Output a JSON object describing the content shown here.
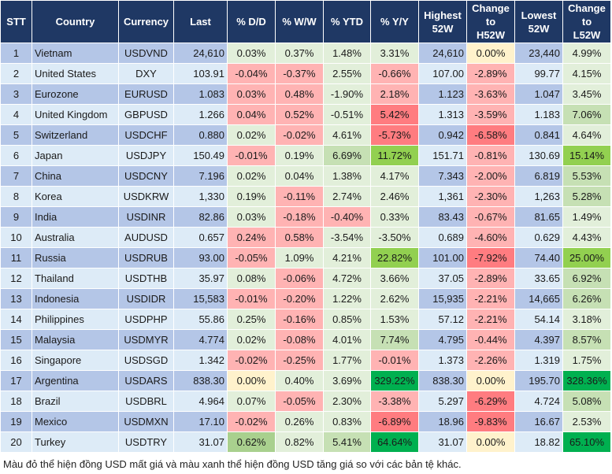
{
  "headers": [
    "STT",
    "Country",
    "Currency",
    "Last",
    "% D/D",
    "% W/W",
    "% YTD",
    "% Y/Y",
    "Highest\n52W",
    "Change\nto\nH52W",
    "Lowest\n52W",
    "Change\nto\nL52W"
  ],
  "colors": {
    "header": "#1f3864",
    "row_odd": "#b4c6e7",
    "row_even": "#ddebf7",
    "g": "#e2efda",
    "G": "#c6e0b4",
    "A": "#a9d08e",
    "GG": "#92d050",
    "GGG": "#00b050",
    "r": "#ffb3b3",
    "R": "#ff7c80",
    "y": "#fff2cc"
  },
  "rows": [
    {
      "cells": [
        "1",
        "Vietnam",
        "USDVND",
        "24,610",
        "0.03%",
        "0.37%",
        "1.48%",
        "3.31%",
        "24,610",
        "0.00%",
        "23,440",
        "4.99%"
      ],
      "styles": [
        "g",
        "g",
        "g",
        "g",
        "b",
        "y",
        "b",
        "g"
      ]
    },
    {
      "cells": [
        "2",
        "United States",
        "DXY",
        "103.91",
        "-0.04%",
        "-0.37%",
        "2.55%",
        "-0.66%",
        "107.00",
        "-2.89%",
        "99.77",
        "4.15%"
      ],
      "styles": [
        "r",
        "r",
        "g",
        "r",
        "b",
        "r",
        "b",
        "g"
      ]
    },
    {
      "cells": [
        "3",
        "Eurozone",
        "EURUSD",
        "1.083",
        "0.03%",
        "0.48%",
        "-1.90%",
        "2.18%",
        "1.123",
        "-3.63%",
        "1.047",
        "3.45%"
      ],
      "styles": [
        "r",
        "r",
        "g",
        "r",
        "b",
        "r",
        "b",
        "g"
      ]
    },
    {
      "cells": [
        "4",
        "United Kingdom",
        "GBPUSD",
        "1.266",
        "0.04%",
        "0.52%",
        "-0.51%",
        "5.42%",
        "1.313",
        "-3.59%",
        "1.183",
        "7.06%"
      ],
      "styles": [
        "r",
        "r",
        "g",
        "R",
        "b",
        "r",
        "b",
        "G"
      ]
    },
    {
      "cells": [
        "5",
        "Switzerland",
        "USDCHF",
        "0.880",
        "0.02%",
        "-0.02%",
        "4.61%",
        "-5.73%",
        "0.942",
        "-6.58%",
        "0.841",
        "4.64%"
      ],
      "styles": [
        "g",
        "r",
        "g",
        "R",
        "b",
        "R",
        "b",
        "g"
      ]
    },
    {
      "cells": [
        "6",
        "Japan",
        "USDJPY",
        "150.49",
        "-0.01%",
        "0.19%",
        "6.69%",
        "11.72%",
        "151.71",
        "-0.81%",
        "130.69",
        "15.14%"
      ],
      "styles": [
        "r",
        "g",
        "G",
        "GG",
        "b",
        "r",
        "b",
        "GG"
      ]
    },
    {
      "cells": [
        "7",
        "China",
        "USDCNY",
        "7.196",
        "0.02%",
        "0.04%",
        "1.38%",
        "4.17%",
        "7.343",
        "-2.00%",
        "6.819",
        "5.53%"
      ],
      "styles": [
        "g",
        "g",
        "g",
        "g",
        "b",
        "r",
        "b",
        "G"
      ]
    },
    {
      "cells": [
        "8",
        "Korea",
        "USDKRW",
        "1,330",
        "0.19%",
        "-0.11%",
        "2.74%",
        "2.46%",
        "1,361",
        "-2.30%",
        "1,263",
        "5.28%"
      ],
      "styles": [
        "g",
        "r",
        "g",
        "g",
        "b",
        "r",
        "b",
        "G"
      ]
    },
    {
      "cells": [
        "9",
        "India",
        "USDINR",
        "82.86",
        "0.03%",
        "-0.18%",
        "-0.40%",
        "0.33%",
        "83.43",
        "-0.67%",
        "81.65",
        "1.49%"
      ],
      "styles": [
        "g",
        "r",
        "r",
        "g",
        "b",
        "r",
        "b",
        "g"
      ]
    },
    {
      "cells": [
        "10",
        "Australia",
        "AUDUSD",
        "0.657",
        "0.24%",
        "0.58%",
        "-3.54%",
        "-3.50%",
        "0.689",
        "-4.60%",
        "0.629",
        "4.43%"
      ],
      "styles": [
        "r",
        "r",
        "g",
        "g",
        "b",
        "r",
        "b",
        "g"
      ]
    },
    {
      "cells": [
        "11",
        "Russia",
        "USDRUB",
        "93.00",
        "-0.05%",
        "1.09%",
        "4.21%",
        "22.82%",
        "101.00",
        "-7.92%",
        "74.40",
        "25.00%"
      ],
      "styles": [
        "r",
        "g",
        "g",
        "GG",
        "b",
        "R",
        "b",
        "GG"
      ]
    },
    {
      "cells": [
        "12",
        "Thailand",
        "USDTHB",
        "35.97",
        "0.08%",
        "-0.06%",
        "4.72%",
        "3.66%",
        "37.05",
        "-2.89%",
        "33.65",
        "6.92%"
      ],
      "styles": [
        "g",
        "r",
        "g",
        "g",
        "b",
        "r",
        "b",
        "G"
      ]
    },
    {
      "cells": [
        "13",
        "Indonesia",
        "USDIDR",
        "15,583",
        "-0.01%",
        "-0.20%",
        "1.22%",
        "2.62%",
        "15,935",
        "-2.21%",
        "14,665",
        "6.26%"
      ],
      "styles": [
        "r",
        "r",
        "g",
        "g",
        "b",
        "r",
        "b",
        "G"
      ]
    },
    {
      "cells": [
        "14",
        "Philippines",
        "USDPHP",
        "55.86",
        "0.25%",
        "-0.16%",
        "0.85%",
        "1.53%",
        "57.12",
        "-2.21%",
        "54.14",
        "3.18%"
      ],
      "styles": [
        "g",
        "r",
        "g",
        "g",
        "b",
        "r",
        "b",
        "g"
      ]
    },
    {
      "cells": [
        "15",
        "Malaysia",
        "USDMYR",
        "4.774",
        "0.02%",
        "-0.08%",
        "4.01%",
        "7.74%",
        "4.795",
        "-0.44%",
        "4.397",
        "8.57%"
      ],
      "styles": [
        "g",
        "r",
        "g",
        "G",
        "b",
        "r",
        "b",
        "G"
      ]
    },
    {
      "cells": [
        "16",
        "Singapore",
        "USDSGD",
        "1.342",
        "-0.02%",
        "-0.25%",
        "1.77%",
        "-0.01%",
        "1.373",
        "-2.26%",
        "1.319",
        "1.75%"
      ],
      "styles": [
        "r",
        "r",
        "g",
        "r",
        "b",
        "r",
        "b",
        "g"
      ]
    },
    {
      "cells": [
        "17",
        "Argentina",
        "USDARS",
        "838.30",
        "0.00%",
        "0.40%",
        "3.69%",
        "329.22%",
        "838.30",
        "0.00%",
        "195.70",
        "328.36%"
      ],
      "styles": [
        "y",
        "g",
        "g",
        "GGG",
        "b",
        "y",
        "b",
        "GGG"
      ]
    },
    {
      "cells": [
        "18",
        "Brazil",
        "USDBRL",
        "4.964",
        "0.07%",
        "-0.05%",
        "2.30%",
        "-3.38%",
        "5.297",
        "-6.29%",
        "4.724",
        "5.08%"
      ],
      "styles": [
        "g",
        "r",
        "g",
        "r",
        "b",
        "R",
        "b",
        "G"
      ]
    },
    {
      "cells": [
        "19",
        "Mexico",
        "USDMXN",
        "17.10",
        "-0.02%",
        "0.26%",
        "0.83%",
        "-6.89%",
        "18.96",
        "-9.83%",
        "16.67",
        "2.53%"
      ],
      "styles": [
        "r",
        "g",
        "g",
        "R",
        "b",
        "R",
        "b",
        "g"
      ]
    },
    {
      "cells": [
        "20",
        "Turkey",
        "USDTRY",
        "31.07",
        "0.62%",
        "0.82%",
        "5.41%",
        "64.64%",
        "31.07",
        "0.00%",
        "18.82",
        "65.10%"
      ],
      "styles": [
        "A",
        "g",
        "G",
        "GGG",
        "b",
        "y",
        "b",
        "GGG"
      ]
    }
  ],
  "footnote": "Màu đỏ thể hiện đồng USD mất giá và màu xanh thể hiện đồng USD tăng giá so với các bản tệ khác."
}
